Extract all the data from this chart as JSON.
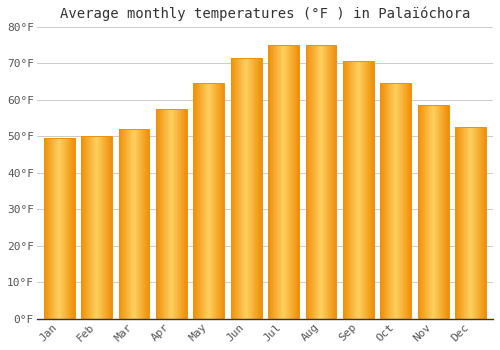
{
  "title": "Average monthly temperatures (°F ) in Palaïóchora",
  "months": [
    "Jan",
    "Feb",
    "Mar",
    "Apr",
    "May",
    "Jun",
    "Jul",
    "Aug",
    "Sep",
    "Oct",
    "Nov",
    "Dec"
  ],
  "values": [
    49.5,
    50.0,
    52.0,
    57.5,
    64.5,
    71.5,
    75.0,
    75.0,
    70.5,
    64.5,
    58.5,
    52.5
  ],
  "bar_color_center": "#FFD060",
  "bar_color_edge": "#F0900A",
  "background_color": "#FFFFFF",
  "plot_bg_color": "#FFFFFF",
  "grid_color": "#CCCCCC",
  "text_color": "#555555",
  "spine_color": "#333333",
  "ylim": [
    0,
    80
  ],
  "yticks": [
    0,
    10,
    20,
    30,
    40,
    50,
    60,
    70,
    80
  ],
  "ytick_labels": [
    "0°F",
    "10°F",
    "20°F",
    "30°F",
    "40°F",
    "50°F",
    "60°F",
    "70°F",
    "80°F"
  ],
  "title_fontsize": 10,
  "tick_fontsize": 8,
  "font_family": "monospace",
  "bar_width": 0.82
}
